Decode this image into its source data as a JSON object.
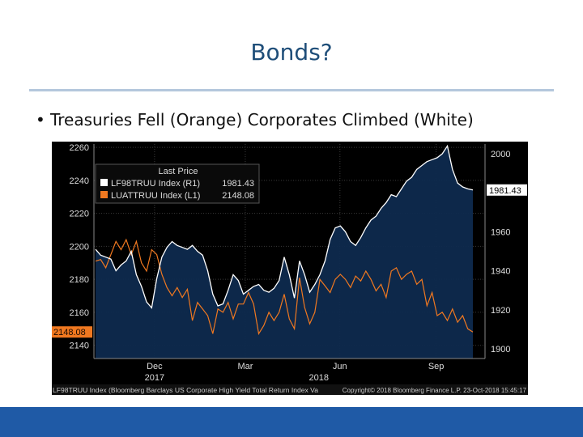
{
  "slide": {
    "title": "Bonds?",
    "bullet": "Treasuries Fell (Orange) Corporates Climbed (White)"
  },
  "colors": {
    "title": "#1f4e79",
    "footer": "#1f5aa6",
    "chart_bg": "#000000",
    "area_fill": "#0e2a4e",
    "white_series": "#ffffff",
    "orange_series": "#f07820"
  },
  "chart_data": {
    "type": "line",
    "legend": {
      "header": "Last Price",
      "entries": [
        {
          "label": "LF98TRUU Index  (R1)",
          "value": "1981.43"
        },
        {
          "label": "LUATTRUU Index  (L1)",
          "value": "2148.08"
        }
      ]
    },
    "x_tick_labels": [
      "Dec",
      "Mar",
      "Jun",
      "Sep"
    ],
    "year_labels": [
      "2017",
      "2018"
    ],
    "y_left": {
      "ticks": [
        2140,
        2160,
        2180,
        2200,
        2220,
        2240,
        2260
      ],
      "range": [
        2132,
        2262
      ]
    },
    "y_right": {
      "ticks": [
        1900,
        1920,
        1940,
        1960,
        2000
      ],
      "range": [
        1895,
        2005
      ]
    },
    "last_price_tags": {
      "left": "2148.08",
      "right": "1981.43"
    },
    "footer_left": "LF98TRUU Index (Bloomberg Barclays US Corporate High Yield Total Return Index Va",
    "footer_right": "Copyright© 2018 Bloomberg Finance L.P.     23-Oct-2018 15:45:17",
    "series": [
      {
        "axis": "right",
        "color": "white",
        "values": [
          1951,
          1948,
          1947,
          1946,
          1940,
          1943,
          1945,
          1950,
          1938,
          1932,
          1924,
          1921,
          1936,
          1947,
          1952,
          1955,
          1953,
          1952,
          1951,
          1953,
          1950,
          1948,
          1940,
          1928,
          1922,
          1923,
          1930,
          1938,
          1935,
          1928,
          1930,
          1932,
          1933,
          1930,
          1929,
          1931,
          1935,
          1947,
          1938,
          1926,
          1945,
          1938,
          1929,
          1933,
          1938,
          1945,
          1956,
          1962,
          1963,
          1960,
          1955,
          1953,
          1957,
          1962,
          1966,
          1968,
          1972,
          1975,
          1979,
          1978,
          1982,
          1986,
          1988,
          1992,
          1994,
          1996,
          1997,
          1998,
          2000,
          2004,
          1992,
          1985,
          1983,
          1982,
          1981.43
        ]
      },
      {
        "axis": "left",
        "color": "orange",
        "values": [
          2191,
          2192,
          2187,
          2195,
          2203,
          2198,
          2204,
          2195,
          2203,
          2190,
          2185,
          2198,
          2195,
          2183,
          2175,
          2170,
          2175,
          2169,
          2174,
          2155,
          2166,
          2162,
          2158,
          2147,
          2162,
          2160,
          2166,
          2156,
          2165,
          2165,
          2172,
          2165,
          2147,
          2152,
          2160,
          2155,
          2160,
          2171,
          2156,
          2150,
          2181,
          2163,
          2153,
          2160,
          2180,
          2176,
          2172,
          2180,
          2183,
          2180,
          2175,
          2182,
          2179,
          2185,
          2180,
          2173,
          2177,
          2169,
          2185,
          2187,
          2180,
          2183,
          2185,
          2177,
          2180,
          2164,
          2172,
          2158,
          2160,
          2155,
          2162,
          2154,
          2158,
          2150,
          2148.08
        ]
      }
    ]
  }
}
